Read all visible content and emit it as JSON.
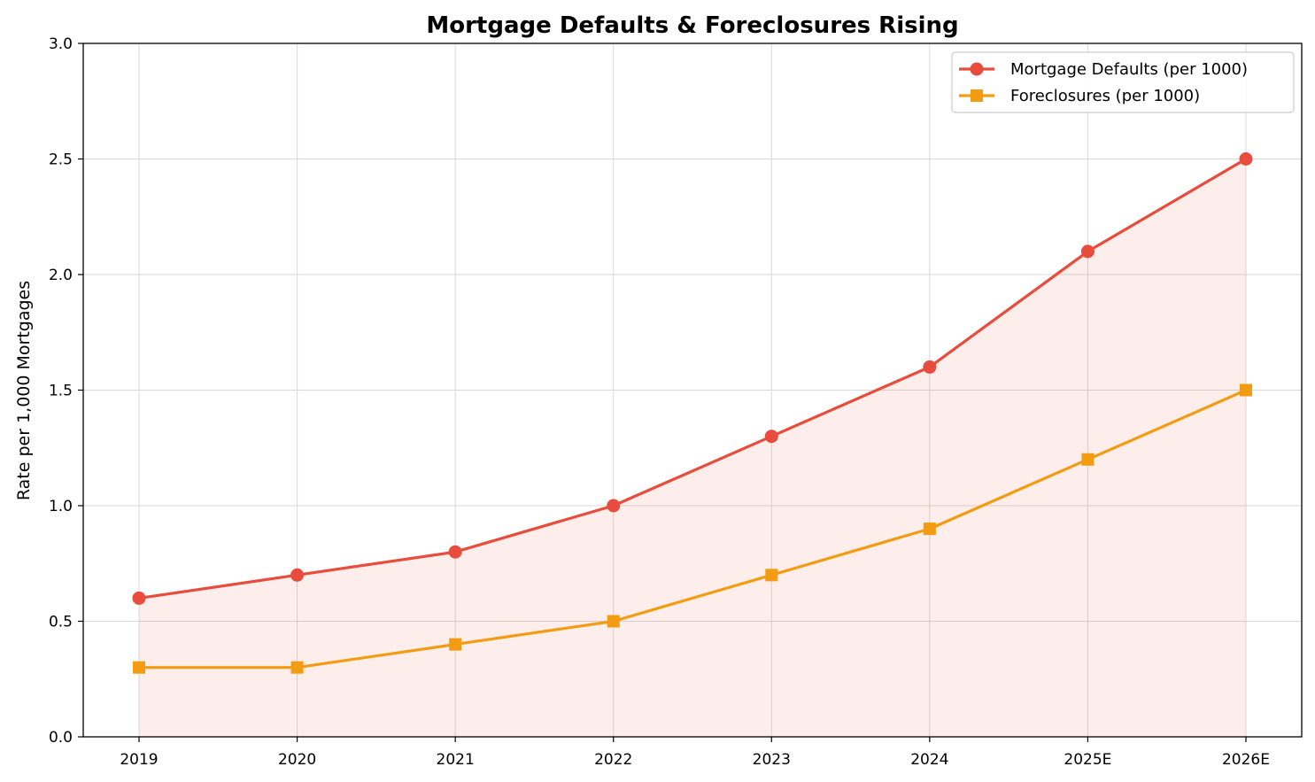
{
  "chart_data": {
    "type": "line",
    "title": "Mortgage Defaults & Foreclosures Rising",
    "xlabel": "",
    "ylabel": "Rate per 1,000 Mortgages",
    "categories": [
      "2019",
      "2020",
      "2021",
      "2022",
      "2023",
      "2024",
      "2025E",
      "2026E"
    ],
    "ylim": [
      0,
      3.0
    ],
    "yticks": [
      0.0,
      0.5,
      1.0,
      1.5,
      2.0,
      2.5,
      3.0
    ],
    "ytick_labels": [
      "0.0",
      "0.5",
      "1.0",
      "1.5",
      "2.0",
      "2.5",
      "3.0"
    ],
    "grid": true,
    "legend_position": "top-right",
    "series": [
      {
        "name": "Mortgage Defaults (per 1000)",
        "values": [
          0.6,
          0.7,
          0.8,
          1.0,
          1.3,
          1.6,
          2.1,
          2.5
        ],
        "color": "#e74c3c",
        "marker": "circle",
        "fill_below": true,
        "fill_color": "#e74c3c"
      },
      {
        "name": "Foreclosures (per 1000)",
        "values": [
          0.3,
          0.3,
          0.4,
          0.5,
          0.7,
          0.9,
          1.2,
          1.5
        ],
        "color": "#f39c12",
        "marker": "square",
        "fill_below": false
      }
    ]
  }
}
